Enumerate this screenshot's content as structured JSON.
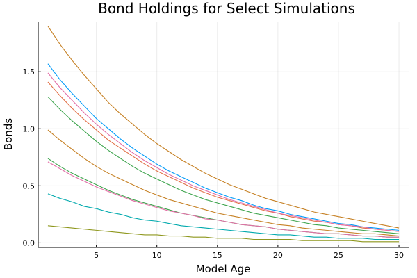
{
  "chart_data": {
    "type": "line",
    "title": "Bond Holdings for Select Simulations",
    "xlabel": "Model Age",
    "ylabel": "Bonds",
    "xlim": [
      0.2,
      30.8
    ],
    "ylim": [
      -0.04,
      1.94
    ],
    "xticks": [
      5,
      10,
      15,
      20,
      25,
      30
    ],
    "yticks": [
      0.0,
      0.5,
      1.0,
      1.5
    ],
    "grid": true,
    "legend": "none",
    "x": [
      1,
      2,
      3,
      4,
      5,
      6,
      7,
      8,
      9,
      10,
      11,
      12,
      13,
      14,
      15,
      16,
      17,
      18,
      19,
      20,
      21,
      22,
      23,
      24,
      25,
      26,
      27,
      28,
      29,
      30
    ],
    "series": [
      {
        "color": "#c68125",
        "values": [
          1.9,
          1.74,
          1.6,
          1.47,
          1.35,
          1.23,
          1.13,
          1.04,
          0.95,
          0.87,
          0.8,
          0.73,
          0.67,
          0.61,
          0.56,
          0.51,
          0.47,
          0.43,
          0.39,
          0.36,
          0.33,
          0.3,
          0.27,
          0.25,
          0.23,
          0.21,
          0.19,
          0.17,
          0.15,
          0.13
        ]
      },
      {
        "color": "#009af9",
        "values": [
          1.57,
          1.43,
          1.31,
          1.2,
          1.09,
          1.0,
          0.91,
          0.83,
          0.76,
          0.69,
          0.63,
          0.58,
          0.53,
          0.48,
          0.44,
          0.4,
          0.37,
          0.33,
          0.3,
          0.28,
          0.25,
          0.23,
          0.21,
          0.19,
          0.17,
          0.16,
          0.14,
          0.13,
          0.12,
          0.11
        ]
      },
      {
        "color": "#e26f46",
        "values": [
          1.41,
          1.29,
          1.18,
          1.08,
          0.99,
          0.9,
          0.83,
          0.76,
          0.69,
          0.63,
          0.58,
          0.53,
          0.48,
          0.44,
          0.4,
          0.37,
          0.34,
          0.31,
          0.28,
          0.26,
          0.23,
          0.21,
          0.19,
          0.18,
          0.16,
          0.15,
          0.13,
          0.12,
          0.11,
          0.1
        ]
      },
      {
        "color": "#e36fa7",
        "values": [
          1.49,
          1.36,
          1.25,
          1.14,
          1.04,
          0.95,
          0.87,
          0.79,
          0.72,
          0.66,
          0.6,
          0.55,
          0.5,
          0.46,
          0.42,
          0.38,
          0.35,
          0.32,
          0.29,
          0.26,
          0.24,
          0.22,
          0.2,
          0.18,
          0.16,
          0.15,
          0.14,
          0.12,
          0.11,
          0.1
        ]
      },
      {
        "color": "#3da44d",
        "values": [
          1.28,
          1.17,
          1.07,
          0.98,
          0.89,
          0.81,
          0.74,
          0.67,
          0.61,
          0.56,
          0.51,
          0.46,
          0.42,
          0.38,
          0.35,
          0.32,
          0.29,
          0.26,
          0.24,
          0.22,
          0.2,
          0.18,
          0.16,
          0.15,
          0.13,
          0.12,
          0.11,
          0.1,
          0.09,
          0.08
        ]
      },
      {
        "color": "#c68125",
        "values": [
          0.99,
          0.9,
          0.82,
          0.74,
          0.67,
          0.61,
          0.56,
          0.51,
          0.46,
          0.42,
          0.38,
          0.35,
          0.32,
          0.29,
          0.26,
          0.24,
          0.22,
          0.2,
          0.18,
          0.16,
          0.15,
          0.13,
          0.12,
          0.11,
          0.1,
          0.09,
          0.08,
          0.08,
          0.07,
          0.06
        ]
      },
      {
        "color": "#3da44d",
        "values": [
          0.74,
          0.67,
          0.61,
          0.56,
          0.51,
          0.46,
          0.42,
          0.38,
          0.35,
          0.32,
          0.29,
          0.26,
          0.24,
          0.22,
          0.2,
          0.18,
          0.16,
          0.15,
          0.14,
          0.12,
          0.11,
          0.1,
          0.09,
          0.08,
          0.08,
          0.07,
          0.06,
          0.06,
          0.05,
          0.05
        ]
      },
      {
        "color": "#e36fa7",
        "values": [
          0.71,
          0.65,
          0.59,
          0.54,
          0.49,
          0.45,
          0.41,
          0.37,
          0.34,
          0.31,
          0.28,
          0.26,
          0.24,
          0.21,
          0.2,
          0.18,
          0.16,
          0.15,
          0.14,
          0.12,
          0.11,
          0.1,
          0.09,
          0.08,
          0.08,
          0.07,
          0.06,
          0.06,
          0.05,
          0.05
        ]
      },
      {
        "color": "#00a9ad",
        "values": [
          0.43,
          0.39,
          0.36,
          0.32,
          0.3,
          0.27,
          0.25,
          0.22,
          0.2,
          0.19,
          0.17,
          0.15,
          0.14,
          0.13,
          0.12,
          0.11,
          0.1,
          0.09,
          0.08,
          0.07,
          0.07,
          0.06,
          0.05,
          0.05,
          0.04,
          0.04,
          0.04,
          0.03,
          0.03,
          0.03
        ]
      },
      {
        "color": "#8e971d",
        "values": [
          0.15,
          0.14,
          0.13,
          0.12,
          0.11,
          0.1,
          0.09,
          0.08,
          0.07,
          0.07,
          0.06,
          0.06,
          0.05,
          0.05,
          0.04,
          0.04,
          0.04,
          0.03,
          0.03,
          0.03,
          0.03,
          0.02,
          0.02,
          0.02,
          0.02,
          0.02,
          0.01,
          0.01,
          0.01,
          0.01
        ]
      }
    ]
  }
}
